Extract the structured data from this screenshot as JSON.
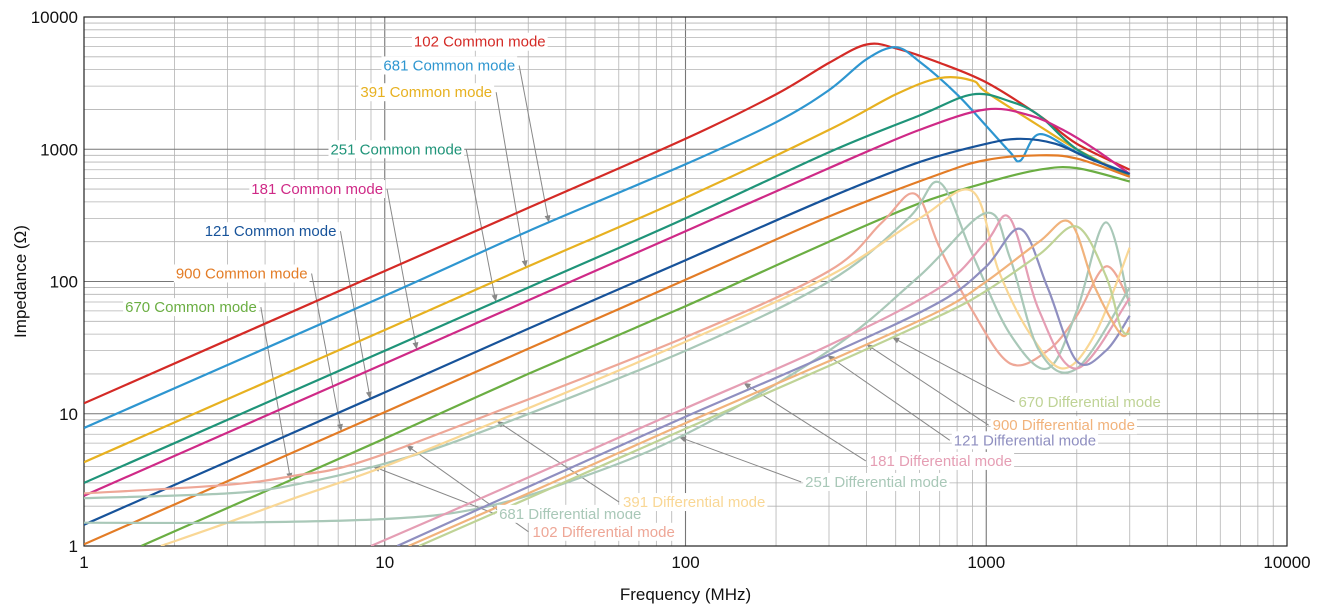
{
  "chart_data": {
    "type": "line",
    "title": "",
    "xlabel": "Frequency (MHz)",
    "ylabel": "Impedance (Ω)",
    "xscale": "log",
    "yscale": "log",
    "xlim": [
      1,
      10000
    ],
    "ylim": [
      1,
      10000
    ],
    "grid": true,
    "legend": "inline labels",
    "x_ticks": [
      "1",
      "10",
      "100",
      "1000",
      "10000"
    ],
    "y_ticks": [
      "1",
      "10",
      "100",
      "1000",
      "10000"
    ],
    "series": [
      {
        "name": "102 Common mode",
        "color": "#d42a26",
        "label_at": [
          12.5,
          6500
        ],
        "x": [
          1,
          10,
          30,
          100,
          200,
          300,
          400,
          500,
          700,
          1000,
          1500,
          2000,
          3000
        ],
        "y": [
          12,
          120,
          360,
          1200,
          2600,
          4500,
          6200,
          5800,
          4500,
          3200,
          1800,
          1100,
          700
        ]
      },
      {
        "name": "681 Common mode",
        "color": "#2e96d0",
        "label_at": [
          9.9,
          4300
        ],
        "x": [
          1,
          10,
          30,
          100,
          200,
          300,
          400,
          500,
          600,
          800,
          1000,
          1200,
          1300,
          1500,
          2000,
          3000
        ],
        "y": [
          7.8,
          78,
          240,
          770,
          1600,
          2800,
          4800,
          5900,
          4600,
          2600,
          1500,
          950,
          820,
          1300,
          950,
          650
        ]
      },
      {
        "name": "391 Common mode",
        "color": "#e7b120",
        "label_at": [
          8.3,
          2700
        ],
        "x": [
          1,
          10,
          30,
          100,
          300,
          500,
          700,
          900,
          1000,
          1500,
          2000,
          3000
        ],
        "y": [
          4.3,
          43,
          130,
          430,
          1400,
          2600,
          3450,
          3300,
          2700,
          1500,
          1000,
          620
        ]
      },
      {
        "name": "251 Common mode",
        "color": "#1f9479",
        "label_at": [
          6.6,
          1000
        ],
        "x": [
          1,
          10,
          30,
          100,
          300,
          600,
          900,
          1200,
          1500,
          2000,
          3000
        ],
        "y": [
          3,
          30,
          90,
          300,
          950,
          1800,
          2600,
          2300,
          1800,
          1000,
          620
        ]
      },
      {
        "name": "181 Common mode",
        "color": "#cf2a87",
        "label_at": [
          3.6,
          500
        ],
        "x": [
          1,
          10,
          30,
          100,
          300,
          600,
          1000,
          1400,
          1800,
          2300,
          3000
        ],
        "y": [
          2.4,
          24,
          72,
          240,
          720,
          1400,
          2000,
          1800,
          1400,
          1000,
          650
        ]
      },
      {
        "name": "121 Common mode",
        "color": "#17539a",
        "label_at": [
          2.52,
          240
        ],
        "x": [
          1,
          10,
          30,
          100,
          300,
          600,
          1000,
          1300,
          1700,
          2200,
          3000
        ],
        "y": [
          1.45,
          14.5,
          44,
          145,
          430,
          800,
          1100,
          1200,
          1100,
          850,
          650
        ]
      },
      {
        "name": "900 Common mode",
        "color": "#e37c26",
        "label_at": [
          2.02,
          115
        ],
        "x": [
          1,
          10,
          30,
          100,
          300,
          700,
          1000,
          1500,
          2000,
          3000
        ],
        "y": [
          1.03,
          10.3,
          31,
          103,
          310,
          650,
          830,
          900,
          850,
          620
        ]
      },
      {
        "name": "670 Common mode",
        "color": "#6bae43",
        "label_at": [
          1.37,
          64
        ],
        "x": [
          1.55,
          10,
          30,
          100,
          300,
          600,
          1000,
          1500,
          2000,
          3000
        ],
        "y": [
          1,
          6.5,
          20,
          65,
          200,
          390,
          560,
          700,
          720,
          570
        ]
      },
      {
        "name": "102 Differential mode",
        "color": "#eea797",
        "label_at": [
          31,
          1.28
        ],
        "x": [
          1,
          3,
          5,
          8,
          20,
          100,
          300,
          450,
          580,
          700,
          900,
          1200,
          1600,
          2000,
          2500,
          3000
        ],
        "y": [
          2.5,
          2.9,
          3.4,
          4.2,
          9,
          38,
          120,
          280,
          460,
          180,
          60,
          24,
          30,
          55,
          130,
          70
        ]
      },
      {
        "name": "681 Differential mode",
        "color": "#a9c8b8",
        "label_at": [
          24,
          1.75
        ],
        "x": [
          1,
          3,
          5,
          10,
          20,
          100,
          300,
          550,
          700,
          900,
          1200,
          1600,
          2000,
          2500,
          3000
        ],
        "y": [
          2.3,
          2.5,
          2.9,
          4.2,
          7,
          30,
          100,
          300,
          560,
          160,
          40,
          22,
          60,
          280,
          65
        ]
      },
      {
        "name": "391 Differential mode",
        "color": "#f9d795",
        "label_at": [
          62,
          2.15
        ],
        "x": [
          1.8,
          3,
          5,
          10,
          30,
          100,
          300,
          600,
          900,
          1100,
          1400,
          1800,
          2300,
          3000
        ],
        "y": [
          1,
          1.5,
          2.3,
          4,
          11,
          35,
          110,
          300,
          480,
          120,
          40,
          22,
          40,
          180
        ]
      },
      {
        "name": "251 Differential mode",
        "color": "#a9c8b8",
        "label_at": [
          250,
          3.05
        ],
        "x": [
          1,
          3,
          10,
          20,
          40,
          100,
          300,
          600,
          1000,
          1200,
          1500,
          2000,
          3000
        ],
        "y": [
          1.5,
          1.5,
          1.6,
          1.9,
          3,
          7,
          30,
          110,
          330,
          150,
          30,
          22,
          90
        ]
      },
      {
        "name": "181 Differential mode",
        "color": "#e59eb4",
        "label_at": [
          410,
          4.4
        ],
        "x": [
          9,
          20,
          50,
          100,
          300,
          700,
          1000,
          1200,
          1500,
          2000,
          3000
        ],
        "y": [
          1,
          2.2,
          5.5,
          11,
          33,
          90,
          200,
          300,
          60,
          22,
          75
        ]
      },
      {
        "name": "121 Differential mode",
        "color": "#8f8fc0",
        "label_at": [
          780,
          6.3
        ],
        "x": [
          11,
          30,
          100,
          300,
          700,
          1000,
          1300,
          1600,
          2000,
          2500,
          3000
        ],
        "y": [
          1,
          2.8,
          9.5,
          28,
          70,
          130,
          250,
          90,
          25,
          30,
          55
        ]
      },
      {
        "name": "900 Differential mode",
        "color": "#f1b37c",
        "label_at": [
          1050,
          8.2
        ],
        "x": [
          12,
          30,
          100,
          300,
          700,
          1000,
          1500,
          1900,
          2300,
          2800,
          3000
        ],
        "y": [
          1,
          2.5,
          8.5,
          25,
          60,
          100,
          200,
          280,
          90,
          40,
          45
        ]
      },
      {
        "name": "670 Differential mode",
        "color": "#bfd396",
        "label_at": [
          1280,
          12.3
        ],
        "x": [
          13,
          30,
          100,
          300,
          700,
          1000,
          1500,
          2000,
          2500,
          2800,
          3000
        ],
        "y": [
          1,
          2.3,
          7.7,
          23,
          55,
          85,
          160,
          260,
          110,
          45,
          40
        ]
      }
    ]
  }
}
